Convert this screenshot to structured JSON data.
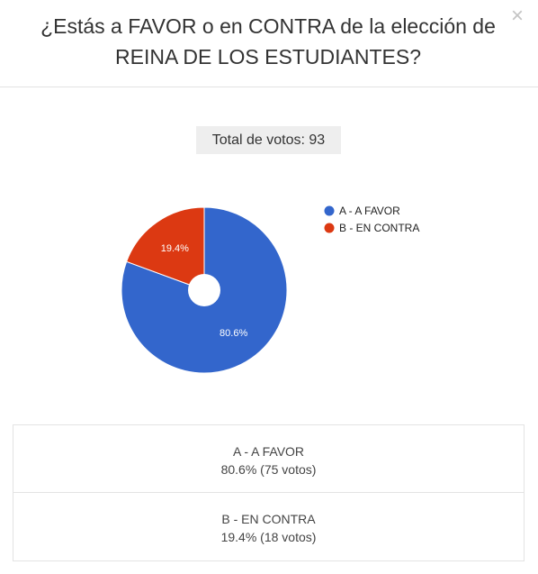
{
  "modal": {
    "title_line1": "¿Estás a FAVOR o en CONTRA de la elección de",
    "title_line2": "REINA DE LOS ESTUDIANTES?",
    "close_glyph": "×"
  },
  "total": {
    "label": "Total de votos: 93"
  },
  "chart_data": {
    "type": "pie",
    "donut": true,
    "categories": [
      "A - A FAVOR",
      "B - EN CONTRA"
    ],
    "values": [
      80.6,
      19.4
    ],
    "slice_labels": [
      "80.6%",
      "19.4%"
    ],
    "colors": [
      "#3366cc",
      "#dc3912"
    ],
    "legend": "right"
  },
  "results": [
    {
      "label": "A - A FAVOR",
      "detail": "80.6% (75 votos)"
    },
    {
      "label": "B - EN CONTRA",
      "detail": "19.4% (18 votos)"
    }
  ]
}
